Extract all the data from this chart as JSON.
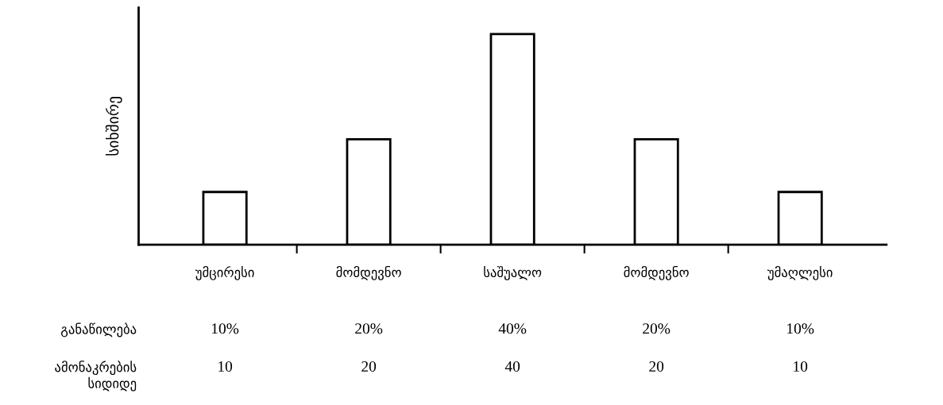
{
  "chart_data": {
    "type": "bar",
    "ylabel": "სიხშირე",
    "categories": [
      "უმცირესი",
      "მომდევნო",
      "საშუალო",
      "მომდევნო",
      "უმაღლესი"
    ],
    "values": [
      10,
      20,
      40,
      20,
      10
    ],
    "value_labels": [
      "10%",
      "20%",
      "40%",
      "20%",
      "10%"
    ],
    "color": "#ffffff",
    "ylim": [
      0,
      45
    ],
    "tick_labels": "x",
    "grid": false,
    "legend": false,
    "annotations": [
      "განაწილება",
      "ამონაკრების\nსიდიდე",
      "10",
      "20",
      "40",
      "20",
      "10"
    ]
  }
}
